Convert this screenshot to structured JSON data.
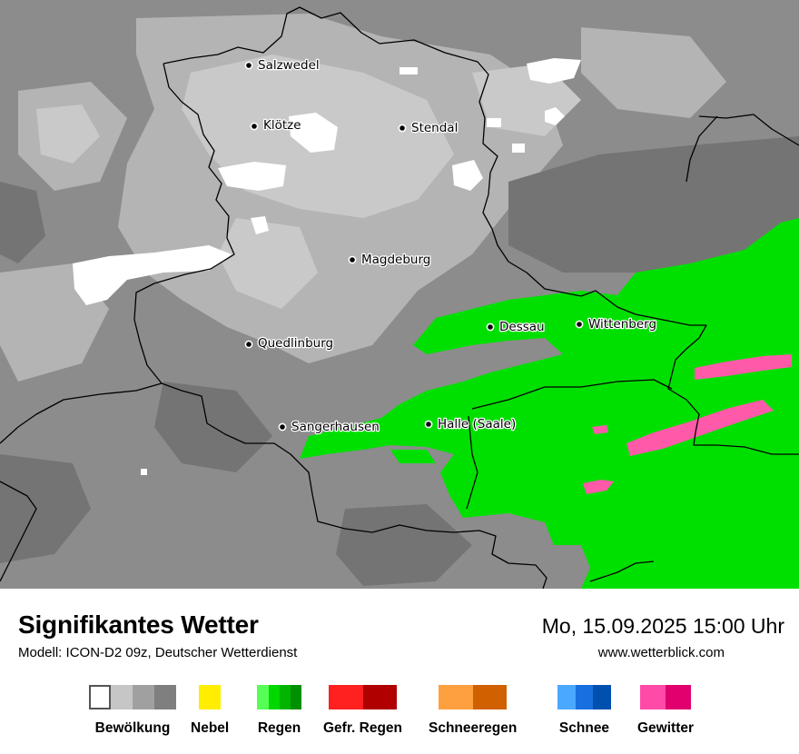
{
  "map": {
    "cities": [
      {
        "name": "Salzwedel",
        "id": "salzwedel"
      },
      {
        "name": "Klötze",
        "id": "kloetze"
      },
      {
        "name": "Stendal",
        "id": "stendal"
      },
      {
        "name": "Magdeburg",
        "id": "magdeburg"
      },
      {
        "name": "Dessau",
        "id": "dessau"
      },
      {
        "name": "Wittenberg",
        "id": "wittenberg"
      },
      {
        "name": "Quedlinburg",
        "id": "quedlinburg"
      },
      {
        "name": "Sangerhausen",
        "id": "sangerhausen"
      },
      {
        "name": "Halle (Saale)",
        "id": "halle"
      }
    ],
    "colors": {
      "cloud_dark": "#7a7a7a",
      "cloud_mid": "#8e8e8e",
      "cloud_light": "#a8a8a8",
      "cloud_lighter": "#c8c8c8",
      "clear": "#ffffff",
      "rain": "#00e000",
      "thunder": "#ff5aaa",
      "border": "#000000"
    }
  },
  "footer": {
    "title": "Signifikantes Wetter",
    "subtitle": "Modell: ICON-D2 09z, Deutscher Wetterdienst",
    "datetime": "Mo, 15.09.2025 15:00 Uhr",
    "site": "www.wetterblick.com"
  },
  "legend": [
    {
      "label": "Bewölkung",
      "colors": [
        "#ffffff",
        "#c6c6c6",
        "#a0a0a0",
        "#7f7f7f"
      ]
    },
    {
      "label": "Nebel",
      "colors": [
        "#ffee00"
      ]
    },
    {
      "label": "Regen",
      "colors": [
        "#55ff55",
        "#00d800",
        "#00b400",
        "#009000"
      ]
    },
    {
      "label": "Gefr. Regen",
      "colors": [
        "#ff2020",
        "#b00000"
      ]
    },
    {
      "label": "Schneeregen",
      "colors": [
        "#ffa040",
        "#d06000"
      ]
    },
    {
      "label": "Schnee",
      "colors": [
        "#4aa8ff",
        "#1870e0",
        "#0050b0"
      ]
    },
    {
      "label": "Gewitter",
      "colors": [
        "#ff4aa8",
        "#e0006e"
      ]
    }
  ]
}
